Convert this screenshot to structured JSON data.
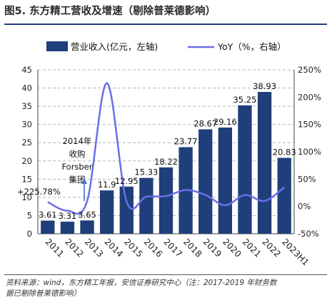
{
  "figure": {
    "title": "图5. 东方精工营收及增速（剔除普莱德影响）",
    "source_line1": "资料来源：wind，东方精工年报，安信证券研究中心（注：2017-2019 年财务数",
    "source_line2": "据已剔除普莱德影响）"
  },
  "annotation": {
    "lines": [
      "2014年",
      "收购",
      "Forsber",
      "集团"
    ],
    "arrow_year": "2014"
  },
  "chart_data": {
    "type": "bar",
    "categories": [
      "2011",
      "2012",
      "2013",
      "2014",
      "2015",
      "2016",
      "2017",
      "2018",
      "2019",
      "2020",
      "2021",
      "2022",
      "2023H1"
    ],
    "series": [
      {
        "name": "营业收入(亿元，左轴)",
        "type": "bar",
        "axis": "left",
        "color": "#1f3f7a",
        "values": [
          3.61,
          3.31,
          3.65,
          11.9,
          12.95,
          15.33,
          18.22,
          23.77,
          28.67,
          29.16,
          35.25,
          38.93,
          20.83
        ],
        "labels": [
          "3.61",
          "3.31",
          "3.65",
          "11.9",
          "12.95",
          "15.33",
          "18.22",
          "23.77",
          "28.67",
          "29.16",
          "35.25",
          "38.93",
          "20.83"
        ]
      },
      {
        "name": "YoY（%，右轴）",
        "type": "line",
        "axis": "right",
        "color": "#6a6ee8",
        "values": [
          0.08,
          -0.08,
          0.1,
          2.2578,
          0.09,
          0.18,
          0.19,
          0.3,
          0.21,
          0.02,
          0.21,
          0.1,
          0.35
        ],
        "labels": [
          "",
          "",
          "",
          "+225.78%",
          "",
          "",
          "",
          "",
          "",
          "",
          "",
          "",
          ""
        ]
      }
    ],
    "left_axis": {
      "min": 0,
      "max": 45,
      "step": 5,
      "ticks": [
        "0",
        "5",
        "10",
        "15",
        "20",
        "25",
        "30",
        "35",
        "40",
        "45"
      ]
    },
    "right_axis": {
      "min": -0.5,
      "max": 2.5,
      "step": 0.5,
      "ticks": [
        "-50%",
        "0%",
        "50%",
        "100%",
        "150%",
        "200%",
        "250%"
      ]
    },
    "legend_position": "top",
    "grid": "dashed horizontal"
  }
}
